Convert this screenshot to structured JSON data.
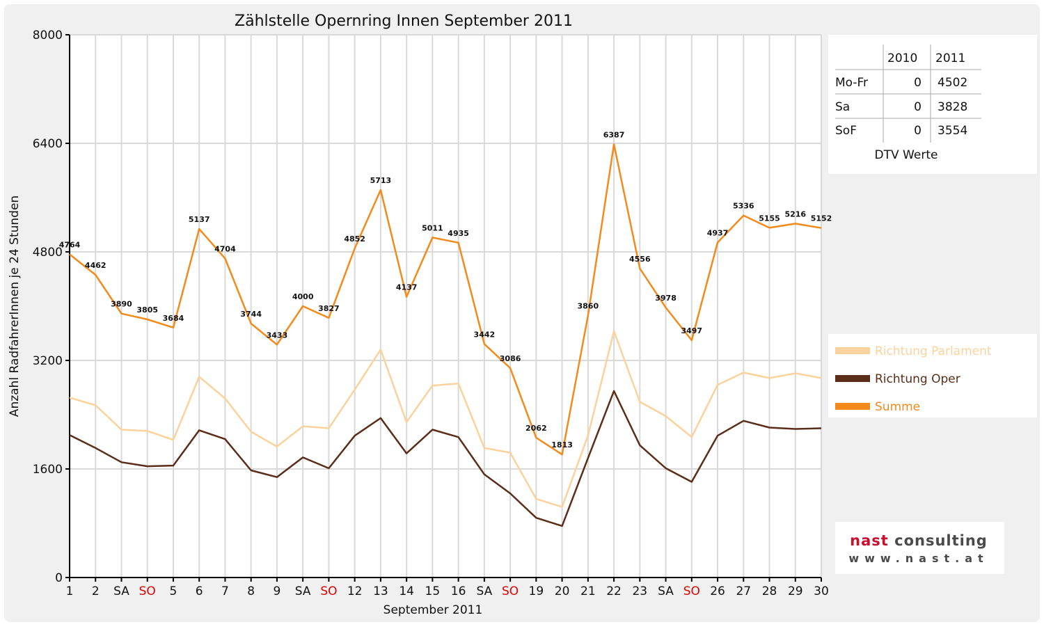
{
  "chart_data": {
    "type": "line",
    "title": "Zählstelle Opernring Innen September 2011",
    "xlabel": "September 2011",
    "ylabel": "Anzahl RadfahrerInnen je 24 Stunden",
    "ylim": [
      0,
      8000
    ],
    "yticks": [
      "0",
      "1600",
      "3200",
      "4800",
      "6400",
      "8000"
    ],
    "categories": [
      "1",
      "2",
      "SA",
      "SO",
      "5",
      "6",
      "7",
      "8",
      "9",
      "SA",
      "SO",
      "12",
      "13",
      "14",
      "15",
      "16",
      "SA",
      "SO",
      "19",
      "20",
      "21",
      "22",
      "23",
      "SA",
      "SO",
      "26",
      "27",
      "28",
      "29",
      "30"
    ],
    "red_categories": [
      3,
      10,
      17,
      24
    ],
    "grid": true,
    "legend_position": "right",
    "series": [
      {
        "name": "Richtung Parlament",
        "color": "#fbd29c",
        "values": [
          2650,
          2540,
          2180,
          2160,
          2030,
          2960,
          2640,
          2150,
          1930,
          2230,
          2200,
          2770,
          3360,
          2290,
          2830,
          2860,
          1910,
          1840,
          1160,
          1040,
          2090,
          3630,
          2590,
          2380,
          2070,
          2840,
          3020,
          2940,
          3010,
          2940
        ]
      },
      {
        "name": "Richtung Oper",
        "color": "#5a2d18",
        "values": [
          2100,
          1910,
          1700,
          1640,
          1650,
          2170,
          2040,
          1580,
          1480,
          1770,
          1610,
          2090,
          2350,
          1830,
          2180,
          2070,
          1520,
          1240,
          880,
          760,
          1760,
          2750,
          1950,
          1610,
          1410,
          2090,
          2310,
          2210,
          2190,
          2200
        ]
      },
      {
        "name": "Summe",
        "color": "#f28a1c",
        "values": [
          4764,
          4462,
          3890,
          3805,
          3684,
          5137,
          4704,
          3744,
          3433,
          4000,
          3827,
          4852,
          5713,
          4137,
          5011,
          4935,
          3442,
          3086,
          2062,
          1813,
          3860,
          6387,
          4556,
          3978,
          3497,
          4937,
          5336,
          5155,
          5216,
          5152
        ]
      }
    ],
    "data_labels": [
      "4764",
      "4462",
      "3890",
      "3805",
      "3684",
      "5137",
      "4704",
      "3744",
      "3433",
      "4000",
      "3827",
      "4852",
      "5713",
      "4137",
      "5011",
      "4935",
      "3442",
      "3086",
      "2062",
      "1813",
      "3860",
      "6387",
      "4556",
      "3978",
      "3497",
      "4937",
      "5336",
      "5155",
      "5216",
      "5152"
    ]
  },
  "dtv_table": {
    "caption": "DTV Werte",
    "headers": [
      "",
      "2010",
      "2011"
    ],
    "rows": [
      {
        "label": "Mo-Fr",
        "v2010": "0",
        "v2011": "4502"
      },
      {
        "label": "Sa",
        "v2010": "0",
        "v2011": "3828"
      },
      {
        "label": "SoF",
        "v2010": "0",
        "v2011": "3554"
      }
    ]
  },
  "logo": {
    "line1_part1": "nast",
    "line1_part2": "consulting",
    "line2": "www.nast.at",
    "color_part1": "#c8102e",
    "color_part2": "#4a4a4a"
  },
  "colors": {
    "frame_background": "#f0f0f0",
    "plot_background": "#ffffff",
    "gridline": "#d9d9d9",
    "red_label": "#e00000"
  }
}
